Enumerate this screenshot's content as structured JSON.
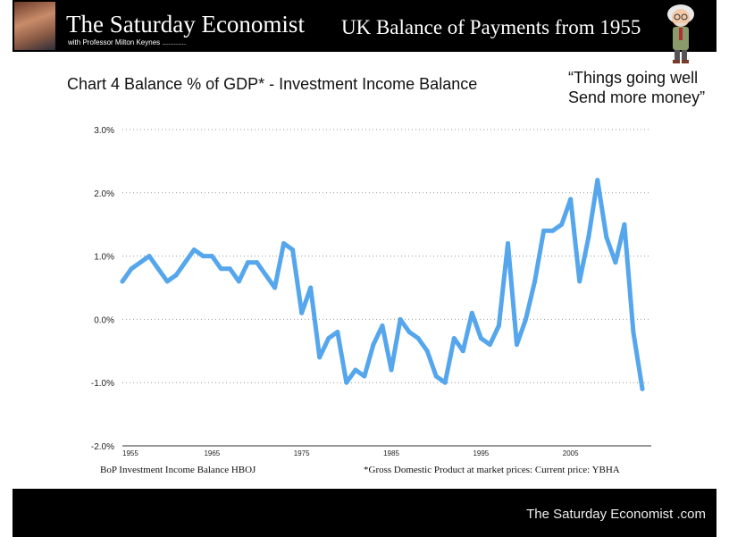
{
  "header": {
    "brand": "The Saturday Economist",
    "brand_sub": "with Professor Milton Keynes ............",
    "title": "UK Balance of Payments from 1955"
  },
  "chart_title": "Chart 4 Balance % of GDP* - Investment Income Balance",
  "quote": {
    "line1": "“Things going well",
    "line2": "Send more money”"
  },
  "footer_text": "The Saturday Economist .com",
  "colors": {
    "line": "#55a6ec",
    "header_bg": "#000000",
    "grid": "#999999"
  },
  "chart_data": {
    "type": "line",
    "title": "Chart 4 Balance % of GDP* - Investment Income Balance",
    "xlabel": "",
    "ylabel": "",
    "ylim": [
      -2.0,
      3.0
    ],
    "y_ticks": [
      "3.0%",
      "2.0%",
      "1.0%",
      "0.0%",
      "-1.0%",
      "-2.0%"
    ],
    "x_ticks": [
      "1955",
      "1965",
      "1975",
      "1985",
      "1995",
      "2005"
    ],
    "grid": true,
    "notes": {
      "left": "BoP Investment Income Balance HBOJ",
      "right": "*Gross Domestic Product at market prices: Current price: YBHA"
    },
    "series": [
      {
        "x": [
          1955,
          1956,
          1957,
          1958,
          1959,
          1960,
          1961,
          1962,
          1963,
          1964,
          1965,
          1966,
          1967,
          1968,
          1969,
          1970,
          1971,
          1972,
          1973,
          1974,
          1975,
          1976,
          1977,
          1978,
          1979,
          1980,
          1981,
          1982,
          1983,
          1984,
          1985,
          1986,
          1987,
          1988,
          1989,
          1990,
          1991,
          1992,
          1993,
          1994,
          1995,
          1996,
          1997,
          1998,
          1999,
          2000,
          2001,
          2002,
          2003,
          2004,
          2005,
          2006,
          2007,
          2008,
          2009,
          2010,
          2011,
          2012,
          2013
        ],
        "values": [
          0.6,
          0.8,
          0.9,
          1.0,
          0.8,
          0.6,
          0.7,
          0.9,
          1.1,
          1.0,
          1.0,
          0.8,
          0.8,
          0.6,
          0.9,
          0.9,
          0.7,
          0.5,
          1.2,
          1.1,
          0.1,
          0.5,
          -0.6,
          -0.3,
          -0.2,
          -1.0,
          -0.8,
          -0.9,
          -0.4,
          -0.1,
          -0.8,
          0.0,
          -0.2,
          -0.3,
          -0.5,
          -0.9,
          -1.0,
          -0.3,
          -0.5,
          0.1,
          -0.3,
          -0.4,
          -0.1,
          1.2,
          -0.4,
          0.0,
          0.6,
          1.4,
          1.4,
          1.5,
          1.9,
          0.6,
          1.3,
          2.2,
          1.3,
          0.9,
          1.5,
          -0.2,
          -1.1
        ]
      }
    ]
  }
}
